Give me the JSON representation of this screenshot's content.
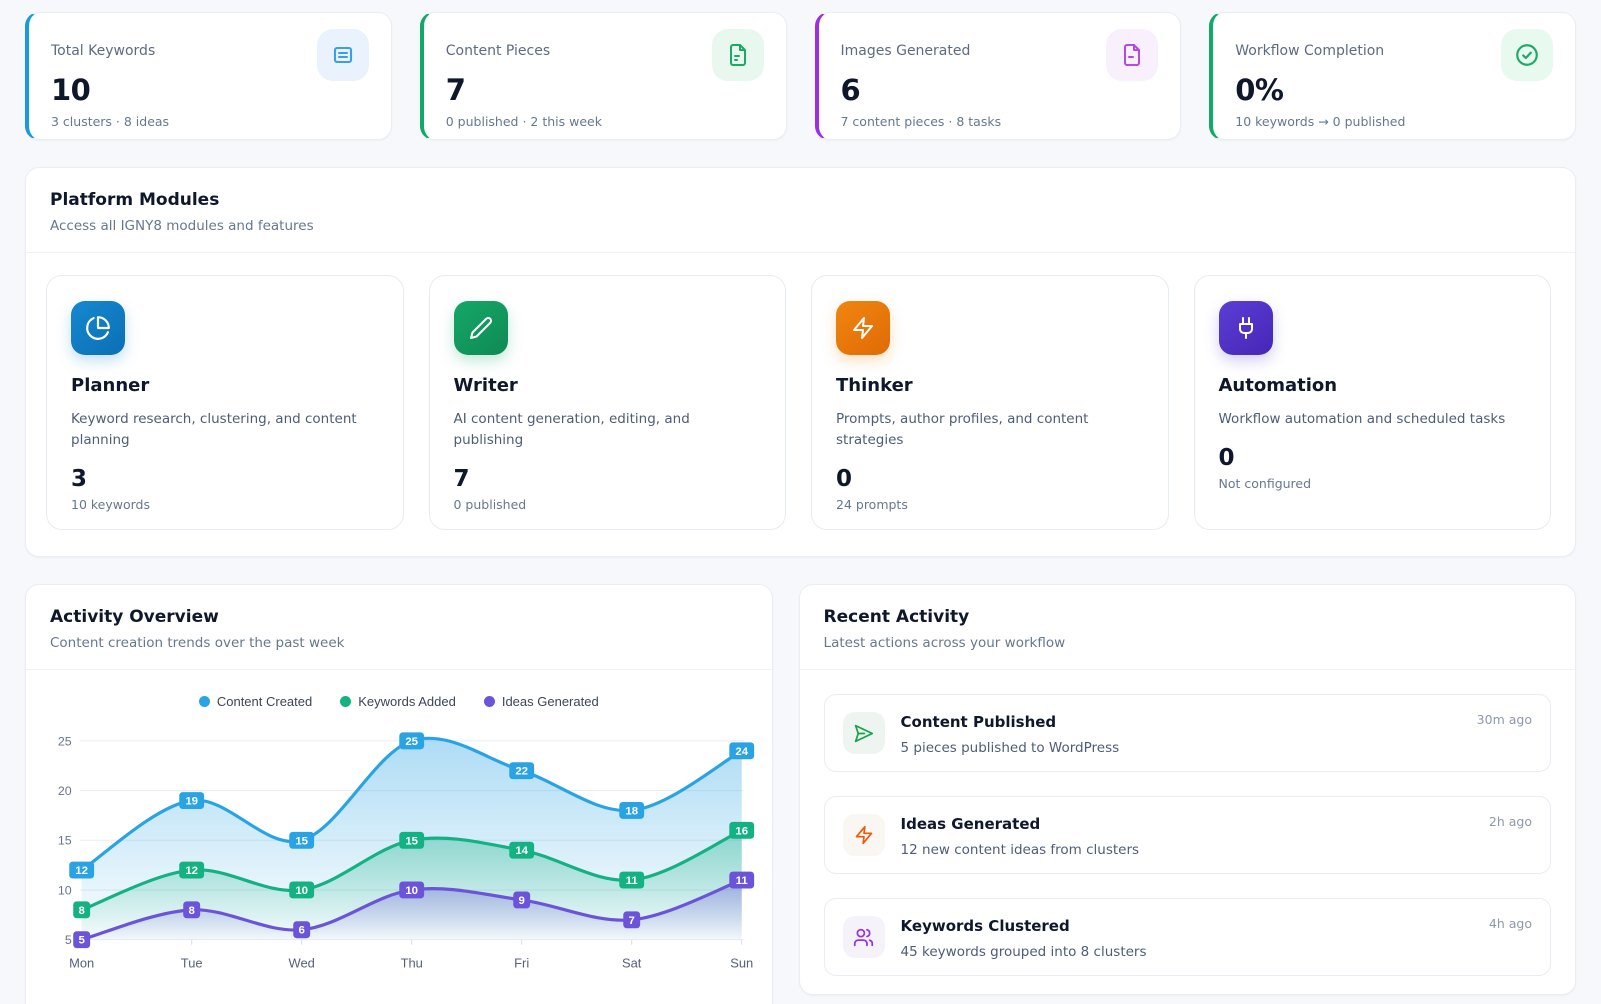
{
  "stats": [
    {
      "label": "Total Keywords",
      "value": "10",
      "sub": "3 clusters · 8 ideas",
      "accent": "#1b9ad8",
      "icon": "list-icon",
      "icon_color": "#3aa0e2",
      "icon_bg": "#e9f2fd"
    },
    {
      "label": "Content Pieces",
      "value": "7",
      "sub": "0 published · 2 this week",
      "accent": "#10a968",
      "icon": "file-text-icon",
      "icon_color": "#1fa969",
      "icon_bg": "#e8f8ef"
    },
    {
      "label": "Images Generated",
      "value": "6",
      "sub": "7 content pieces · 8 tasks",
      "accent": "#9d2ee3",
      "icon": "image-file-icon",
      "icon_color": "#b44ae0",
      "icon_bg": "#f8f0fd"
    },
    {
      "label": "Workflow Completion",
      "value": "0%",
      "sub": "10 keywords → 0 published",
      "accent": "#10a968",
      "icon": "check-circle-icon",
      "icon_color": "#1fa969",
      "icon_bg": "#e8f9f0"
    }
  ],
  "modules_panel": {
    "title": "Platform Modules",
    "subtitle": "Access all IGNY8 modules and features",
    "modules": [
      {
        "name": "Planner",
        "description": "Keyword research, clustering, and content planning",
        "value": "3",
        "sub": "10 keywords",
        "icon": "pie-chart-icon",
        "color_from": "#1588d0",
        "color_to": "#0c6fb4"
      },
      {
        "name": "Writer",
        "description": "AI content generation, editing, and publishing",
        "value": "7",
        "sub": "0 published",
        "icon": "pencil-icon",
        "color_from": "#16a768",
        "color_to": "#0e8a54"
      },
      {
        "name": "Thinker",
        "description": "Prompts, author profiles, and content strategies",
        "value": "0",
        "sub": "24 prompts",
        "icon": "zap-icon",
        "color_from": "#f0860f",
        "color_to": "#e06a06"
      },
      {
        "name": "Automation",
        "description": "Workflow automation and scheduled tasks",
        "value": "0",
        "sub": "Not configured",
        "icon": "plug-icon",
        "color_from": "#5c3ed6",
        "color_to": "#4526b5"
      }
    ]
  },
  "activity_overview": {
    "title": "Activity Overview",
    "subtitle": "Content creation trends over the past week"
  },
  "chart_data": {
    "type": "line",
    "x": [
      "Mon",
      "Tue",
      "Wed",
      "Thu",
      "Fri",
      "Sat",
      "Sun"
    ],
    "series": [
      {
        "name": "Content Created",
        "color": "#29a3e4",
        "values": [
          12,
          19,
          15,
          25,
          22,
          18,
          24
        ]
      },
      {
        "name": "Keywords Added",
        "color": "#14b183",
        "values": [
          8,
          12,
          10,
          15,
          14,
          11,
          16
        ]
      },
      {
        "name": "Ideas Generated",
        "color": "#6b54d8",
        "values": [
          5,
          8,
          6,
          10,
          9,
          7,
          11
        ]
      }
    ],
    "ylim": [
      5,
      25
    ],
    "yticks": [
      5,
      10,
      15,
      20,
      25
    ],
    "grid": true,
    "area_fill": true,
    "point_labels": true,
    "legend_position": "top"
  },
  "recent_activity": {
    "title": "Recent Activity",
    "subtitle": "Latest actions across your workflow",
    "items": [
      {
        "title": "Content Published",
        "description": "5 pieces published to WordPress",
        "time": "30m ago",
        "icon": "send-icon",
        "icon_color": "#16a34a",
        "icon_bg": "#eef5f1"
      },
      {
        "title": "Ideas Generated",
        "description": "12 new content ideas from clusters",
        "time": "2h ago",
        "icon": "zap-icon",
        "icon_color": "#ea5b0c",
        "icon_bg": "#faf6f1"
      },
      {
        "title": "Keywords Clustered",
        "description": "45 keywords grouped into 8 clusters",
        "time": "4h ago",
        "icon": "users-icon",
        "icon_color": "#9333ea",
        "icon_bg": "#f6f2fa"
      }
    ]
  }
}
